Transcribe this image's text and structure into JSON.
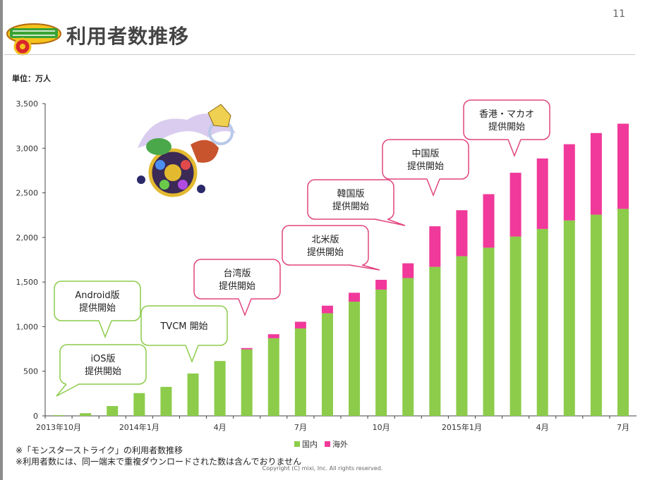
{
  "page_number": "11",
  "title": "利用者数推移",
  "unit_label": "単位：万人",
  "footnotes": [
    "※「モンスターストライク」の利用者数推移",
    "※利用者数には、同一端末で重複ダウンロードされた数は含んでおりません"
  ],
  "copyright": "Copyright (C) mixi, Inc. All rights reserved.",
  "colors": {
    "domestic": "#8ccc4a",
    "overseas": "#f0399a",
    "callout_green": "#8ccc4a",
    "callout_pink": "#e0457f"
  },
  "chart_data": {
    "type": "bar",
    "stacked": true,
    "title": "利用者数推移",
    "ylabel": "単位：万人",
    "xlabel": "",
    "ylim": [
      0,
      3500
    ],
    "yticks": [
      0,
      500,
      1000,
      1500,
      2000,
      2500,
      3000,
      3500
    ],
    "ytick_labels": [
      "0",
      "500",
      "1,000",
      "1,500",
      "2,000",
      "2,500",
      "3,000",
      "3,500"
    ],
    "x_labels": [
      "2013年10月",
      "",
      "",
      "2014年1月",
      "",
      "",
      "4月",
      "",
      "",
      "7月",
      "",
      "",
      "10月",
      "",
      "",
      "2015年1月",
      "",
      "",
      "4月",
      "",
      "",
      "7月"
    ],
    "series": [
      {
        "name": "国内",
        "color": "#8ccc4a",
        "values": [
          8,
          30,
          110,
          255,
          325,
          475,
          615,
          745,
          870,
          980,
          1150,
          1280,
          1415,
          1545,
          1670,
          1790,
          1885,
          2010,
          2095,
          2190,
          2255,
          2320
        ]
      },
      {
        "name": "海外",
        "color": "#f0399a",
        "values": [
          0,
          0,
          0,
          0,
          0,
          0,
          0,
          15,
          45,
          75,
          85,
          100,
          110,
          165,
          455,
          515,
          600,
          715,
          790,
          855,
          915,
          955
        ]
      }
    ],
    "legend": [
      "国内",
      "海外"
    ],
    "legend_position": "bottom",
    "annotations": [
      {
        "lines": [
          "iOS版",
          "提供開始"
        ],
        "month_index": 0,
        "style": "green"
      },
      {
        "lines": [
          "Android版",
          "提供開始"
        ],
        "month_index": 2,
        "style": "green"
      },
      {
        "lines": [
          "TVCM 開始"
        ],
        "month_index": 5,
        "style": "green"
      },
      {
        "lines": [
          "台湾版",
          "提供開始"
        ],
        "month_index": 7,
        "style": "pink"
      },
      {
        "lines": [
          "北米版",
          "提供開始"
        ],
        "month_index": 12,
        "style": "pink"
      },
      {
        "lines": [
          "韓国版",
          "提供開始"
        ],
        "month_index": 13,
        "style": "pink"
      },
      {
        "lines": [
          "中国版",
          "提供開始"
        ],
        "month_index": 14,
        "style": "pink"
      },
      {
        "lines": [
          "香港・マカオ",
          "提供開始"
        ],
        "month_index": 17,
        "style": "pink"
      }
    ]
  }
}
